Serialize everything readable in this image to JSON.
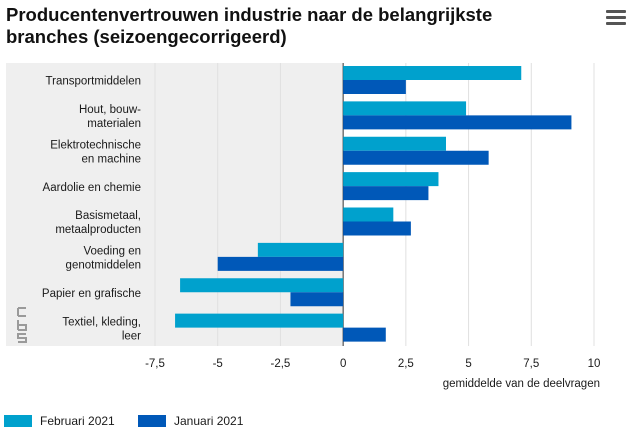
{
  "title": "Producentenvertrouwen industrie naar de belangrijkste branches (seizoengecorrigeerd)",
  "chart_data": {
    "type": "bar",
    "orientation": "horizontal",
    "categories": [
      [
        "Transportmiddelen"
      ],
      [
        "Hout, bouw-",
        "materialen"
      ],
      [
        "Elektrotechnische",
        "en machine"
      ],
      [
        "Aardolie en chemie"
      ],
      [
        "Basismetaal,",
        "metaalproducten"
      ],
      [
        "Voeding en",
        "genotmiddelen"
      ],
      [
        "Papier en grafische"
      ],
      [
        "Textiel, kleding,",
        "leer"
      ]
    ],
    "series": [
      {
        "name": "Februari 2021",
        "color": "#00a1cd",
        "values": [
          7.1,
          4.9,
          4.1,
          3.8,
          2.0,
          -3.4,
          -6.5,
          -6.7
        ]
      },
      {
        "name": "Januari 2021",
        "color": "#0058b8",
        "values": [
          2.5,
          9.1,
          5.8,
          3.4,
          2.7,
          -5.0,
          -2.1,
          1.7
        ]
      }
    ],
    "xlim": [
      -7.5,
      10
    ],
    "xticks": [
      -7.5,
      -5,
      -2.5,
      0,
      2.5,
      5,
      7.5,
      10
    ],
    "xtick_labels": [
      "-7,5",
      "-5",
      "-2,5",
      "0",
      "2,5",
      "5",
      "7,5",
      "10"
    ],
    "xlabel": "gemiddelde van de deelvragen",
    "ylabel": "",
    "grid": true,
    "legend_placement": "bottom-left"
  }
}
